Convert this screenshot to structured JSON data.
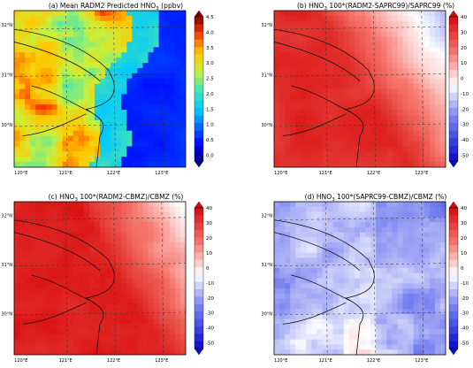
{
  "chart_data": [
    {
      "type": "heatmap",
      "title_pre": "(a) Mean RADM2 Predicted HNO",
      "title_sub": "3",
      "title_post": " (ppbv)",
      "x_ticks": [
        "120°E",
        "121°E",
        "122°E",
        "123°E"
      ],
      "y_ticks": [
        "32°N",
        "31°N",
        "30°N"
      ],
      "colorbar": {
        "ticks": [
          "4.5",
          "4.0",
          "3.5",
          "3.0",
          "2.5",
          "2.0",
          "1.5",
          "1.0",
          "0.5",
          "0.0"
        ],
        "range": [
          0.0,
          4.5
        ],
        "extend": "both"
      }
    },
    {
      "type": "heatmap",
      "title_pre": "(b) HNO",
      "title_sub": "3",
      "title_post": " 100*(RADM2-SAPRC99)/SAPRC99 (%)",
      "x_ticks": [
        "120°E",
        "121°E",
        "122°E",
        "123°E"
      ],
      "y_ticks": [
        "32°N",
        "31°N",
        "30°N"
      ],
      "colorbar": {
        "ticks": [
          "40",
          "30",
          "20",
          "10",
          "0",
          "-10",
          "-20",
          "-30",
          "-40",
          "-50"
        ],
        "range": [
          -50,
          45
        ],
        "extend": "both"
      }
    },
    {
      "type": "heatmap",
      "title_pre": "(c) HNO",
      "title_sub": "3",
      "title_post": " 100*(RADM2-CBMZ)/CBMZ (%)",
      "x_ticks": [
        "120°E",
        "121°E",
        "122°E",
        "123°E"
      ],
      "y_ticks": [
        "32°N",
        "31°N",
        "30°N"
      ],
      "colorbar": {
        "ticks": [
          "40",
          "30",
          "20",
          "10",
          "0",
          "-10",
          "-20",
          "-30",
          "-40",
          "-50"
        ],
        "range": [
          -50,
          45
        ],
        "extend": "both"
      }
    },
    {
      "type": "heatmap",
      "title_pre": "(d) HNO",
      "title_sub": "3",
      "title_post": " 100*(SAPRC99-CBMZ)/CBMZ (%)",
      "x_ticks": [
        "120°E",
        "121°E",
        "122°E",
        "123°E"
      ],
      "y_ticks": [
        "32°N",
        "31°N",
        "30°N"
      ],
      "colorbar": {
        "ticks": [
          "40",
          "30",
          "20",
          "10",
          "0",
          "-10",
          "-20",
          "-30",
          "-40",
          "-50"
        ],
        "range": [
          -50,
          45
        ],
        "extend": "both"
      }
    }
  ]
}
